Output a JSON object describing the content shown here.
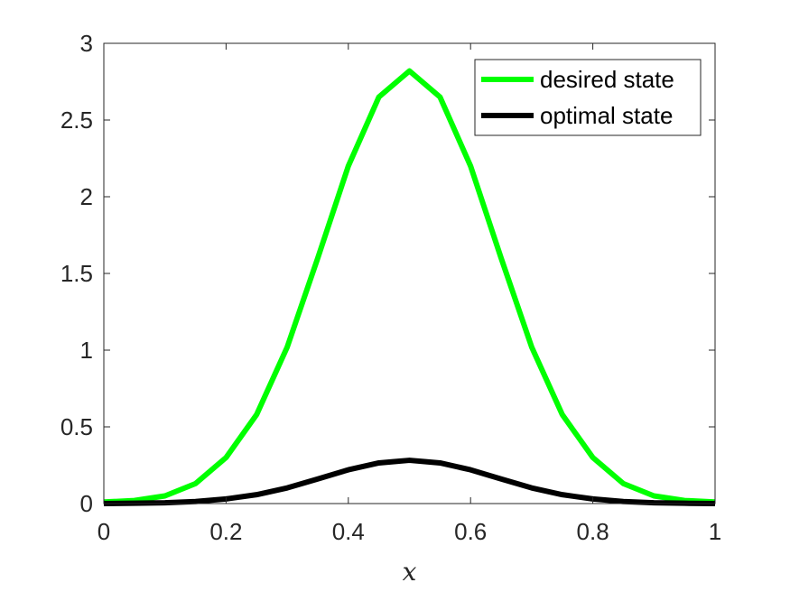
{
  "chart_data": {
    "type": "line",
    "xlabel": "x",
    "ylabel": "",
    "title": "",
    "xlim": [
      0,
      1
    ],
    "ylim": [
      0,
      3
    ],
    "xticks": [
      "0",
      "0.2",
      "0.4",
      "0.6",
      "0.8",
      "1"
    ],
    "xtick_values": [
      0,
      0.2,
      0.4,
      0.6,
      0.8,
      1
    ],
    "yticks": [
      "0",
      "0.5",
      "1",
      "1.5",
      "2",
      "2.5",
      "3"
    ],
    "ytick_values": [
      0,
      0.5,
      1,
      1.5,
      2,
      2.5,
      3
    ],
    "grid": false,
    "legend_position": "top-right",
    "x": [
      0,
      0.05,
      0.1,
      0.15,
      0.2,
      0.25,
      0.3,
      0.35,
      0.4,
      0.45,
      0.5,
      0.55,
      0.6,
      0.65,
      0.7,
      0.75,
      0.8,
      0.85,
      0.9,
      0.95,
      1
    ],
    "series": [
      {
        "name": "desired state",
        "color": "#00ff00",
        "values": [
          0.01,
          0.02,
          0.05,
          0.13,
          0.3,
          0.58,
          1.02,
          1.6,
          2.2,
          2.65,
          2.82,
          2.65,
          2.2,
          1.6,
          1.02,
          0.58,
          0.3,
          0.13,
          0.05,
          0.02,
          0.01
        ]
      },
      {
        "name": "optimal state",
        "color": "#000000",
        "values": [
          0.0,
          0.002,
          0.005,
          0.013,
          0.03,
          0.058,
          0.102,
          0.16,
          0.22,
          0.265,
          0.282,
          0.265,
          0.22,
          0.16,
          0.102,
          0.058,
          0.03,
          0.013,
          0.005,
          0.002,
          0.0
        ]
      }
    ]
  }
}
